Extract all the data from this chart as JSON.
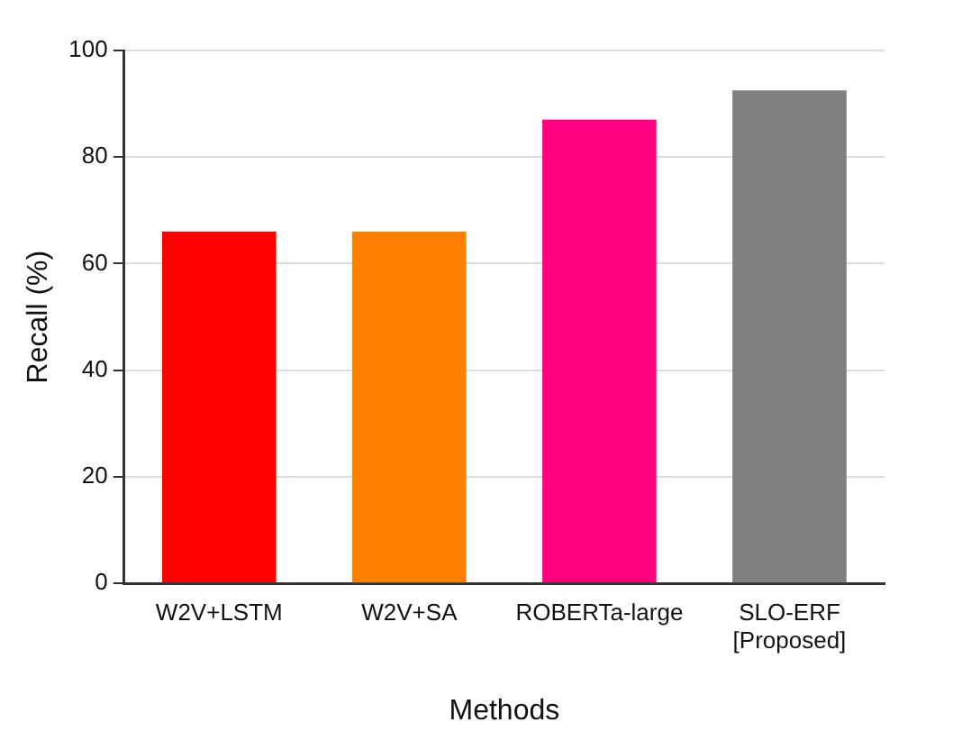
{
  "chart_data": {
    "type": "bar",
    "xlabel": "Methods",
    "ylabel": "Recall (%)",
    "categories": [
      "W2V+LSTM",
      "W2V+SA",
      "ROBERTa-large",
      "SLO-ERF\n[Proposed]"
    ],
    "values": [
      66,
      66,
      87,
      92.5
    ],
    "colors": [
      "#ff0000",
      "#ff8000",
      "#ff0080",
      "#808080"
    ],
    "ylim": [
      0,
      100
    ],
    "yticks": [
      0,
      20,
      40,
      60,
      80,
      100
    ],
    "grid": "y",
    "legend": false
  }
}
